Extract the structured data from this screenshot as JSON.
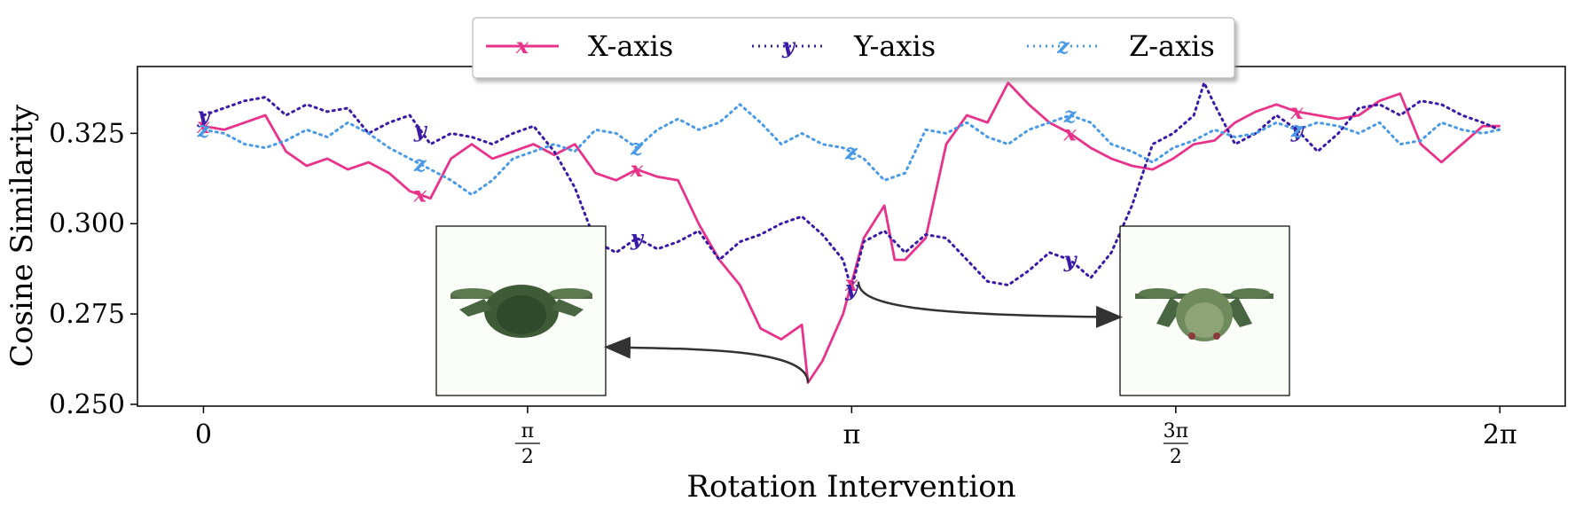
{
  "chart_data": {
    "type": "line",
    "xlabel": "Rotation Intervention",
    "ylabel": "Cosine Similarity",
    "x_ticks": [
      {
        "value": 0,
        "label": "0"
      },
      {
        "value": 1.5708,
        "label": "π/2"
      },
      {
        "value": 3.1416,
        "label": "π"
      },
      {
        "value": 4.7124,
        "label": "3π/2"
      },
      {
        "value": 6.2832,
        "label": "2π"
      }
    ],
    "y_ticks": [
      "0.250",
      "0.275",
      "0.300",
      "0.325"
    ],
    "xlim": [
      -0.32,
      6.6
    ],
    "ylim": [
      0.2495,
      0.3435
    ],
    "legend": {
      "placement": "top-center, above plot"
    },
    "series": [
      {
        "name": "X-axis",
        "marker": "x",
        "color": "#e8338a",
        "style": "solid",
        "x": [
          0,
          0.1,
          0.2,
          0.3,
          0.4,
          0.5,
          0.6,
          0.7,
          0.8,
          0.9,
          1.0,
          1.1,
          1.2,
          1.3,
          1.4,
          1.5,
          1.6,
          1.7,
          1.8,
          1.9,
          2.0,
          2.1,
          2.2,
          2.3,
          2.4,
          2.5,
          2.6,
          2.7,
          2.8,
          2.9,
          2.93,
          3.0,
          3.1,
          3.2,
          3.3,
          3.35,
          3.4,
          3.5,
          3.6,
          3.7,
          3.8,
          3.9,
          4.0,
          4.1,
          4.2,
          4.3,
          4.4,
          4.5,
          4.6,
          4.7,
          4.8,
          4.9,
          5.0,
          5.1,
          5.2,
          5.3,
          5.4,
          5.5,
          5.6,
          5.7,
          5.8,
          5.9,
          6.0,
          6.1,
          6.2,
          6.28
        ],
        "y": [
          0.327,
          0.326,
          0.328,
          0.33,
          0.32,
          0.316,
          0.318,
          0.315,
          0.317,
          0.314,
          0.309,
          0.307,
          0.318,
          0.322,
          0.318,
          0.32,
          0.322,
          0.319,
          0.322,
          0.314,
          0.312,
          0.315,
          0.313,
          0.312,
          0.3,
          0.29,
          0.283,
          0.271,
          0.268,
          0.272,
          0.256,
          0.262,
          0.275,
          0.296,
          0.305,
          0.29,
          0.29,
          0.296,
          0.322,
          0.33,
          0.328,
          0.339,
          0.333,
          0.328,
          0.325,
          0.321,
          0.318,
          0.316,
          0.315,
          0.318,
          0.322,
          0.323,
          0.328,
          0.331,
          0.333,
          0.331,
          0.33,
          0.329,
          0.33,
          0.334,
          0.336,
          0.322,
          0.317,
          0.322,
          0.327,
          0.327
        ]
      },
      {
        "name": "Y-axis",
        "marker": "y",
        "color": "#3a1aa6",
        "style": "dotted",
        "x": [
          0,
          0.1,
          0.2,
          0.3,
          0.4,
          0.5,
          0.6,
          0.7,
          0.8,
          0.9,
          1.0,
          1.1,
          1.2,
          1.3,
          1.4,
          1.5,
          1.6,
          1.7,
          1.8,
          1.9,
          2.0,
          2.1,
          2.2,
          2.3,
          2.4,
          2.5,
          2.6,
          2.7,
          2.8,
          2.9,
          3.0,
          3.1,
          3.14,
          3.2,
          3.3,
          3.4,
          3.5,
          3.6,
          3.7,
          3.8,
          3.9,
          4.0,
          4.1,
          4.2,
          4.3,
          4.4,
          4.5,
          4.6,
          4.7,
          4.8,
          4.85,
          4.9,
          5.0,
          5.1,
          5.2,
          5.3,
          5.4,
          5.5,
          5.6,
          5.7,
          5.8,
          5.9,
          6.0,
          6.1,
          6.2,
          6.28
        ],
        "y": [
          0.33,
          0.332,
          0.334,
          0.335,
          0.33,
          0.333,
          0.331,
          0.332,
          0.325,
          0.328,
          0.33,
          0.322,
          0.325,
          0.324,
          0.322,
          0.325,
          0.327,
          0.32,
          0.31,
          0.295,
          0.292,
          0.296,
          0.293,
          0.295,
          0.298,
          0.29,
          0.295,
          0.297,
          0.3,
          0.302,
          0.297,
          0.29,
          0.282,
          0.295,
          0.298,
          0.292,
          0.297,
          0.296,
          0.29,
          0.284,
          0.283,
          0.287,
          0.292,
          0.29,
          0.285,
          0.292,
          0.305,
          0.322,
          0.325,
          0.33,
          0.339,
          0.333,
          0.322,
          0.325,
          0.33,
          0.326,
          0.32,
          0.325,
          0.332,
          0.333,
          0.33,
          0.334,
          0.333,
          0.33,
          0.328,
          0.326
        ]
      },
      {
        "name": "Z-axis",
        "marker": "z",
        "color": "#4a9ae8",
        "style": "dotted",
        "x": [
          0,
          0.1,
          0.2,
          0.3,
          0.4,
          0.5,
          0.6,
          0.7,
          0.8,
          0.9,
          1.0,
          1.1,
          1.2,
          1.3,
          1.4,
          1.5,
          1.6,
          1.7,
          1.8,
          1.9,
          2.0,
          2.1,
          2.2,
          2.3,
          2.4,
          2.5,
          2.6,
          2.7,
          2.8,
          2.9,
          3.0,
          3.1,
          3.2,
          3.3,
          3.4,
          3.5,
          3.6,
          3.7,
          3.8,
          3.9,
          4.0,
          4.1,
          4.2,
          4.3,
          4.4,
          4.5,
          4.6,
          4.7,
          4.8,
          4.9,
          5.0,
          5.1,
          5.2,
          5.3,
          5.4,
          5.5,
          5.6,
          5.7,
          5.8,
          5.9,
          6.0,
          6.1,
          6.2,
          6.28
        ],
        "y": [
          0.326,
          0.325,
          0.322,
          0.321,
          0.323,
          0.326,
          0.324,
          0.328,
          0.325,
          0.321,
          0.318,
          0.315,
          0.312,
          0.308,
          0.312,
          0.318,
          0.32,
          0.322,
          0.32,
          0.326,
          0.325,
          0.321,
          0.326,
          0.329,
          0.326,
          0.328,
          0.333,
          0.328,
          0.322,
          0.325,
          0.322,
          0.321,
          0.318,
          0.312,
          0.314,
          0.326,
          0.325,
          0.328,
          0.324,
          0.322,
          0.326,
          0.328,
          0.33,
          0.328,
          0.322,
          0.32,
          0.317,
          0.321,
          0.323,
          0.326,
          0.324,
          0.325,
          0.328,
          0.326,
          0.328,
          0.327,
          0.325,
          0.328,
          0.322,
          0.323,
          0.328,
          0.326,
          0.325,
          0.326
        ]
      }
    ],
    "markers": [
      {
        "series": 0,
        "x": [
          0,
          1.05,
          2.1,
          3.14,
          4.2,
          5.3
        ]
      },
      {
        "series": 1,
        "x": [
          0,
          1.05,
          2.1,
          3.14,
          4.2,
          5.3
        ]
      },
      {
        "series": 2,
        "x": [
          0,
          1.05,
          2.1,
          3.14,
          4.2,
          5.3
        ]
      }
    ],
    "insets": [
      {
        "name": "drone-image-left",
        "points_from_x": 2.93,
        "points_from_y": 0.256
      },
      {
        "name": "drone-image-right",
        "points_from_x": 3.14,
        "points_from_y": 0.282
      }
    ]
  }
}
